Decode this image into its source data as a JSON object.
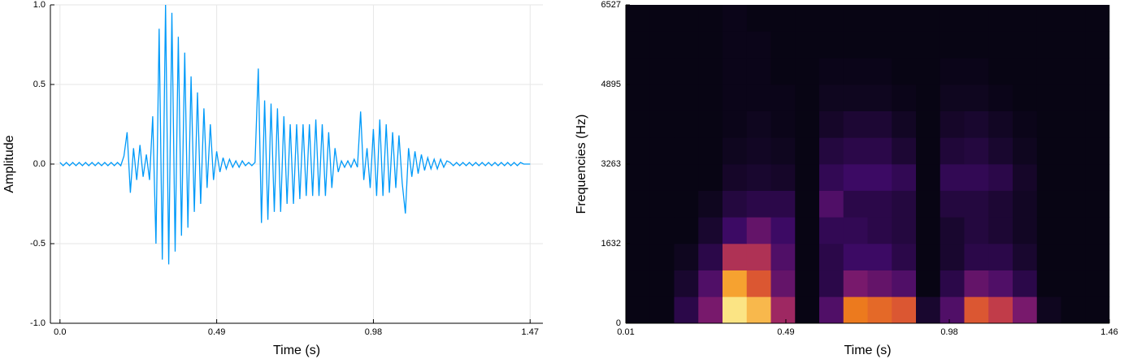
{
  "chart_data": [
    {
      "type": "line",
      "xlabel": "Time (s)",
      "ylabel": "Amplitude",
      "color": "#009af9",
      "grid": true,
      "xlim": [
        -0.03,
        1.51
      ],
      "ylim": [
        -1,
        1
      ],
      "xticks": [
        {
          "value": 0,
          "label": "0.0"
        },
        0.49,
        0.98,
        1.47
      ],
      "yticks": [
        {
          "value": -1,
          "label": "-1.0"
        },
        {
          "value": -0.5,
          "label": "-0.5"
        },
        {
          "value": 0,
          "label": "0.0"
        },
        {
          "value": 0.5,
          "label": "0.5"
        },
        {
          "value": 1,
          "label": "1.0"
        }
      ],
      "x": [
        0.0,
        0.01,
        0.02,
        0.03,
        0.04,
        0.05,
        0.06,
        0.07,
        0.08,
        0.09,
        0.1,
        0.11,
        0.12,
        0.13,
        0.14,
        0.15,
        0.16,
        0.17,
        0.18,
        0.19,
        0.2,
        0.21,
        0.22,
        0.23,
        0.24,
        0.25,
        0.26,
        0.27,
        0.28,
        0.29,
        0.3,
        0.31,
        0.32,
        0.33,
        0.34,
        0.35,
        0.36,
        0.37,
        0.38,
        0.39,
        0.4,
        0.41,
        0.42,
        0.43,
        0.44,
        0.45,
        0.46,
        0.47,
        0.48,
        0.49,
        0.5,
        0.51,
        0.52,
        0.53,
        0.54,
        0.55,
        0.56,
        0.57,
        0.58,
        0.59,
        0.6,
        0.61,
        0.62,
        0.63,
        0.64,
        0.65,
        0.66,
        0.67,
        0.68,
        0.69,
        0.7,
        0.71,
        0.72,
        0.73,
        0.74,
        0.75,
        0.76,
        0.77,
        0.78,
        0.79,
        0.8,
        0.81,
        0.82,
        0.83,
        0.84,
        0.85,
        0.86,
        0.87,
        0.88,
        0.89,
        0.9,
        0.91,
        0.92,
        0.93,
        0.94,
        0.95,
        0.96,
        0.97,
        0.98,
        0.99,
        1.0,
        1.01,
        1.02,
        1.03,
        1.04,
        1.05,
        1.06,
        1.07,
        1.08,
        1.09,
        1.1,
        1.11,
        1.12,
        1.13,
        1.14,
        1.15,
        1.16,
        1.17,
        1.18,
        1.19,
        1.2,
        1.21,
        1.22,
        1.23,
        1.24,
        1.25,
        1.26,
        1.27,
        1.28,
        1.29,
        1.3,
        1.31,
        1.32,
        1.33,
        1.34,
        1.35,
        1.36,
        1.37,
        1.38,
        1.39,
        1.4,
        1.41,
        1.42,
        1.43,
        1.44,
        1.45,
        1.46,
        1.47
      ],
      "values": [
        0.01,
        -0.01,
        0.01,
        -0.01,
        0.01,
        -0.01,
        0.01,
        -0.01,
        0.01,
        -0.01,
        0.01,
        -0.01,
        0.01,
        -0.01,
        0.01,
        -0.01,
        0.01,
        -0.01,
        0.01,
        -0.01,
        0.05,
        0.2,
        -0.18,
        0.1,
        -0.1,
        0.12,
        -0.08,
        0.06,
        -0.1,
        0.3,
        -0.5,
        0.85,
        -0.6,
        1.0,
        -0.63,
        0.95,
        -0.55,
        0.8,
        -0.45,
        0.7,
        -0.4,
        0.55,
        -0.3,
        0.45,
        -0.25,
        0.35,
        -0.15,
        0.25,
        -0.1,
        0.08,
        -0.05,
        0.04,
        -0.03,
        0.03,
        -0.02,
        0.02,
        -0.02,
        0.02,
        -0.01,
        0.01,
        -0.01,
        0.01,
        0.6,
        -0.37,
        0.4,
        -0.35,
        0.38,
        -0.3,
        0.35,
        -0.3,
        0.3,
        -0.25,
        0.25,
        -0.25,
        0.25,
        -0.22,
        0.25,
        -0.2,
        0.25,
        -0.2,
        0.28,
        -0.2,
        0.25,
        -0.2,
        0.2,
        -0.15,
        0.1,
        -0.05,
        0.02,
        -0.02,
        0.02,
        -0.02,
        0.03,
        -0.02,
        0.33,
        -0.1,
        0.1,
        -0.15,
        0.22,
        -0.2,
        0.28,
        -0.2,
        0.25,
        -0.18,
        0.2,
        -0.15,
        0.18,
        -0.12,
        -0.31,
        0.1,
        -0.08,
        0.08,
        -0.06,
        0.06,
        -0.04,
        0.04,
        -0.03,
        0.03,
        -0.03,
        0.03,
        -0.02,
        0.02,
        0.01,
        -0.01,
        0.01,
        -0.01,
        0.01,
        -0.01,
        0.01,
        -0.01,
        0.01,
        -0.01,
        0.01,
        -0.01,
        0.01,
        -0.01,
        0.01,
        -0.01,
        0.01,
        -0.01,
        0.01,
        -0.01,
        0.01,
        -0.01,
        0.01,
        0,
        0,
        0
      ]
    },
    {
      "type": "heatmap",
      "xlabel": "Time (s)",
      "ylabel": "Frequencies (Hz)",
      "xlim": [
        0.01,
        1.46
      ],
      "ylim": [
        0,
        6527
      ],
      "xticks": [
        0.01,
        0.49,
        0.98,
        1.46
      ],
      "yticks": [
        0,
        1632,
        3263,
        4895,
        6527
      ],
      "xbins": [
        0.01,
        0.0825,
        0.155,
        0.2275,
        0.3,
        0.3725,
        0.445,
        0.5175,
        0.59,
        0.6625,
        0.735,
        0.8075,
        0.88,
        0.9525,
        1.025,
        1.0975,
        1.17,
        1.2425,
        1.315,
        1.3875,
        1.46
      ],
      "ybins": [
        0,
        544,
        1088,
        1632,
        2176,
        2720,
        3263,
        3807,
        4351,
        4895,
        5439,
        5983,
        6527
      ],
      "z": [
        [
          0,
          0,
          0.1,
          0.3,
          0.95,
          0.85,
          0.4,
          0,
          0.2,
          0.7,
          0.65,
          0.6,
          0.05,
          0.2,
          0.6,
          0.5,
          0.3,
          0.02,
          0,
          0
        ],
        [
          0,
          0,
          0.05,
          0.2,
          0.8,
          0.6,
          0.25,
          0,
          0.1,
          0.3,
          0.25,
          0.2,
          0,
          0.1,
          0.25,
          0.2,
          0.1,
          0,
          0,
          0
        ],
        [
          0,
          0,
          0.02,
          0.1,
          0.45,
          0.45,
          0.2,
          0,
          0.1,
          0.15,
          0.15,
          0.1,
          0,
          0.05,
          0.1,
          0.1,
          0.05,
          0,
          0,
          0
        ],
        [
          0,
          0,
          0,
          0.05,
          0.15,
          0.25,
          0.15,
          0,
          0.12,
          0.12,
          0.1,
          0.08,
          0,
          0.05,
          0.08,
          0.06,
          0.03,
          0,
          0,
          0
        ],
        [
          0,
          0,
          0,
          0.02,
          0.08,
          0.1,
          0.1,
          0,
          0.2,
          0.1,
          0.1,
          0.08,
          0,
          0.08,
          0.08,
          0.06,
          0.03,
          0,
          0,
          0
        ],
        [
          0,
          0,
          0,
          0,
          0.04,
          0.05,
          0.04,
          0,
          0.12,
          0.15,
          0.15,
          0.12,
          0,
          0.12,
          0.12,
          0.1,
          0.04,
          0,
          0,
          0
        ],
        [
          0,
          0,
          0,
          0,
          0.02,
          0.03,
          0.02,
          0,
          0.08,
          0.1,
          0.1,
          0.06,
          0,
          0.07,
          0.08,
          0.05,
          0.02,
          0,
          0,
          0
        ],
        [
          0,
          0,
          0,
          0,
          0.01,
          0.02,
          0.01,
          0,
          0.04,
          0.06,
          0.06,
          0.03,
          0,
          0.04,
          0.05,
          0.03,
          0.01,
          0,
          0,
          0
        ],
        [
          0,
          0,
          0,
          0,
          0.01,
          0.01,
          0.01,
          0,
          0.02,
          0.02,
          0.02,
          0.01,
          0,
          0.02,
          0.02,
          0.01,
          0,
          0,
          0,
          0
        ],
        [
          0,
          0,
          0,
          0,
          0.01,
          0.01,
          0,
          0,
          0.01,
          0.01,
          0.01,
          0,
          0,
          0.01,
          0.01,
          0,
          0,
          0,
          0,
          0
        ],
        [
          0,
          0,
          0,
          0,
          0.01,
          0.01,
          0,
          0,
          0,
          0,
          0,
          0,
          0,
          0,
          0,
          0,
          0,
          0,
          0,
          0
        ],
        [
          0,
          0,
          0,
          0,
          0.01,
          0,
          0,
          0,
          0,
          0,
          0,
          0,
          0,
          0,
          0,
          0,
          0,
          0,
          0,
          0
        ]
      ]
    }
  ]
}
